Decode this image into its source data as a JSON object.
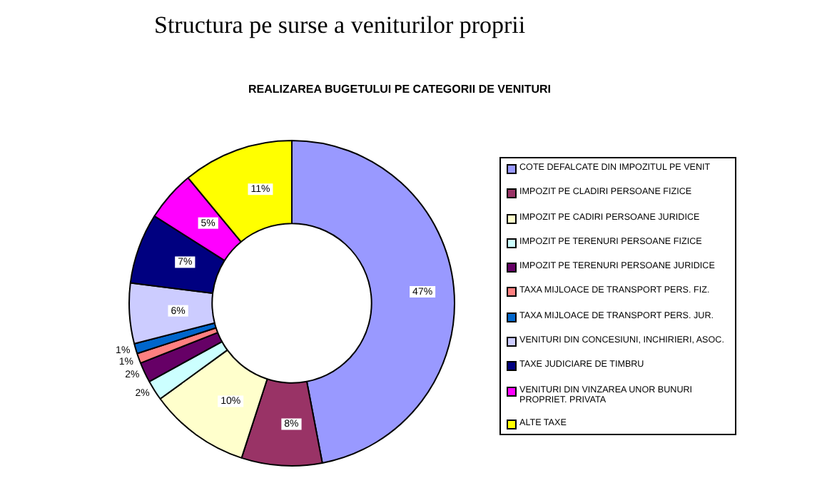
{
  "chart_data": {
    "type": "donut",
    "title": "Structura pe surse a veniturilor proprii",
    "subtitle": "REALIZAREA BUGETULUI  PE CATEGORII DE VENITURI",
    "categories": [
      "COTE DEFALCATE DIN IMPOZITUL PE VENIT",
      "IMPOZIT PE CLADIRI PERSOANE FIZICE",
      "IMPOZIT PE CADIRI PERSOANE JURIDICE",
      "IMPOZIT PE TERENURI PERSOANE FIZICE",
      "IMPOZIT PE TERENURI PERSOANE JURIDICE",
      "TAXA MIJLOACE DE TRANSPORT PERS. FIZ.",
      "TAXA MIJLOACE DE TRANSPORT PERS. JUR.",
      "VENITURI DIN CONCESIUNI, INCHIRIERI, ASOC.",
      "TAXE JUDICIARE DE TIMBRU",
      "VENITURI DIN VINZAREA UNOR BUNURI PROPRIET. PRIVATA",
      "ALTE TAXE"
    ],
    "values": [
      47,
      8,
      10,
      2,
      2,
      1,
      1,
      6,
      7,
      5,
      11
    ],
    "value_labels": [
      "47%",
      "8%",
      "10%",
      "2%",
      "2%",
      "1%",
      "1%",
      "6%",
      "7%",
      "5%",
      "11%"
    ],
    "colors": [
      "#9999ff",
      "#993366",
      "#ffffcc",
      "#ccffff",
      "#660066",
      "#ff8080",
      "#0066cc",
      "#ccccff",
      "#000080",
      "#ff00ff",
      "#ffff00"
    ],
    "legend": "right"
  }
}
